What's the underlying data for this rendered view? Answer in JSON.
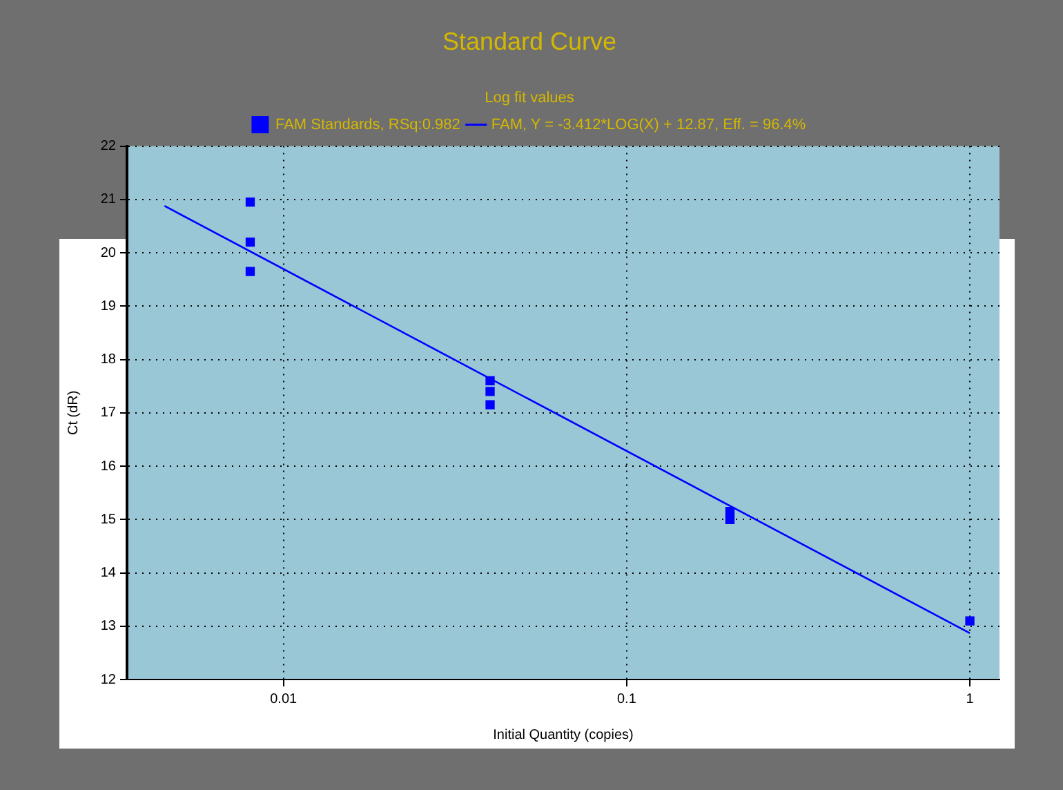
{
  "chart_data": {
    "type": "scatter",
    "title": "Standard Curve",
    "legend_title": "Log fit values",
    "xlabel": "Initial Quantity (copies)",
    "ylabel": "Ct (dR)",
    "log": "x",
    "xlim": [
      0.0035,
      1.22
    ],
    "xticks": [
      0.01,
      0.1,
      1
    ],
    "ylim": [
      12,
      22
    ],
    "yticks": [
      12,
      13,
      14,
      15,
      16,
      17,
      18,
      19,
      20,
      21,
      22
    ],
    "grid": true,
    "legend": "top",
    "series": [
      {
        "name": "FAM Standards, RSq:0.982",
        "type": "scatter",
        "marker": "square",
        "color": "#0000ff",
        "x": [
          0.008,
          0.008,
          0.008,
          0.04,
          0.04,
          0.04,
          0.2,
          0.2,
          1
        ],
        "values": [
          20.95,
          20.2,
          19.65,
          17.6,
          17.4,
          17.15,
          15.15,
          15.0,
          13.1
        ]
      },
      {
        "name": "FAM, Y = -3.412*LOG(X) + 12.87, Eff. = 96.4%",
        "type": "line",
        "marker": "none",
        "color": "#0000ff",
        "x": [
          0.0045,
          1
        ],
        "values": [
          20.88,
          12.87
        ]
      }
    ]
  }
}
